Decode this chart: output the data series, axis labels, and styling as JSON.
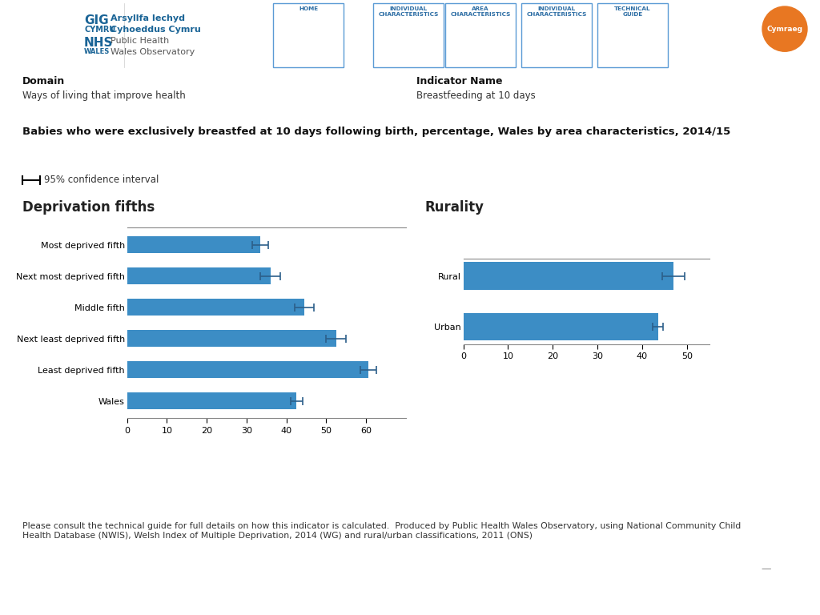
{
  "title": "Babies who were exclusively breastfed at 10 days following birth, percentage, Wales by area characteristics, 2014/15",
  "domain_label": "Domain",
  "domain_value": "Ways of living that improve health",
  "indicator_label": "Indicator Name",
  "indicator_value": "Breastfeeding at 10 days",
  "ci_label": "95% confidence interval",
  "deprivation_title": "Deprivation fifths",
  "deprivation_categories": [
    "Most deprived fifth",
    "Next most deprived fifth",
    "Middle fifth",
    "Next least deprived fifth",
    "Least deprived fifth",
    "Wales"
  ],
  "deprivation_values": [
    33.5,
    36.0,
    44.5,
    52.5,
    60.5,
    42.5
  ],
  "deprivation_errors_low": [
    2.0,
    2.5,
    2.5,
    2.5,
    2.0,
    1.5
  ],
  "deprivation_errors_high": [
    2.0,
    2.5,
    2.5,
    2.5,
    2.0,
    1.5
  ],
  "deprivation_xlim": [
    0,
    70
  ],
  "deprivation_xticks": [
    0,
    10,
    20,
    30,
    40,
    50,
    60
  ],
  "rurality_title": "Rurality",
  "rurality_categories": [
    "Rural",
    "Urban"
  ],
  "rurality_values": [
    47.0,
    43.5
  ],
  "rurality_errors_low": [
    2.5,
    1.2
  ],
  "rurality_errors_high": [
    2.5,
    1.2
  ],
  "rurality_xlim": [
    0,
    55
  ],
  "rurality_xticks": [
    0,
    10,
    20,
    30,
    40,
    50
  ],
  "bar_color": "#3c8dc5",
  "error_color": "#2c5f8a",
  "bar_height": 0.55,
  "footer_text": "Please consult the technical guide for full details on how this indicator is calculated.  Produced by Public Health Wales Observatory, using National Community Child\nHealth Database (NWIS), Welsh Index of Multiple Deprivation, 2014 (WG) and rural/urban classifications, 2011 (ONS)",
  "background_color": "#ffffff",
  "nav_items": [
    "HOME",
    "INDIVIDUAL\nCHARACTERISTICS",
    "AREA\nCHARACTERISTICS",
    "INDIVIDUAL\nCHARACTERISTICS",
    "TECHNICAL\nGUIDE"
  ],
  "nav_box_color": "#d0e4f0",
  "nav_text_color": "#2c6da4",
  "cymraeg_color": "#e87722"
}
